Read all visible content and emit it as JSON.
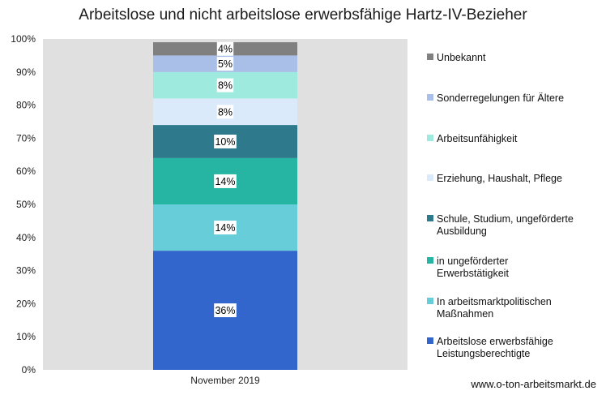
{
  "chart_data": {
    "type": "bar",
    "stacked": true,
    "title": "Arbeitslose und nicht arbeitslose erwerbsfähige Hartz-IV-Bezieher",
    "categories": [
      "November 2019"
    ],
    "ylim": [
      0,
      100
    ],
    "yticks": [
      "0%",
      "10%",
      "20%",
      "30%",
      "40%",
      "50%",
      "60%",
      "70%",
      "80%",
      "90%",
      "100%"
    ],
    "grid": false,
    "legend_position": "right",
    "plot_background": "#e0e0e0",
    "series": [
      {
        "name": "Arbeitslose erwerbsfähige Leistungsberechtigte",
        "values": [
          36
        ],
        "label": "36%",
        "color": "#3366cc"
      },
      {
        "name": "In arbeitsmarktpolitischen Maßnahmen",
        "values": [
          14
        ],
        "label": "14%",
        "color": "#66cdd9"
      },
      {
        "name": "in ungeförderter Erwerbstätigkeit",
        "values": [
          14
        ],
        "label": "14%",
        "color": "#26b5a3"
      },
      {
        "name": "Schule, Studium, ungeförderte Ausbildung",
        "values": [
          10
        ],
        "label": "10%",
        "color": "#2e7a8c"
      },
      {
        "name": "Erziehung, Haushalt, Pflege",
        "values": [
          8
        ],
        "label": "8%",
        "color": "#dbeafb"
      },
      {
        "name": "Arbeitsunfähigkeit",
        "values": [
          8
        ],
        "label": "8%",
        "color": "#9eeadf"
      },
      {
        "name": "Sonderregelungen für Ältere",
        "values": [
          5
        ],
        "label": "5%",
        "color": "#a9bfe8"
      },
      {
        "name": "Unbekannt",
        "values": [
          4
        ],
        "label": "4%",
        "color": "#808080"
      }
    ]
  },
  "footer": {
    "url": "www.o-ton-arbeitsmarkt.de"
  }
}
